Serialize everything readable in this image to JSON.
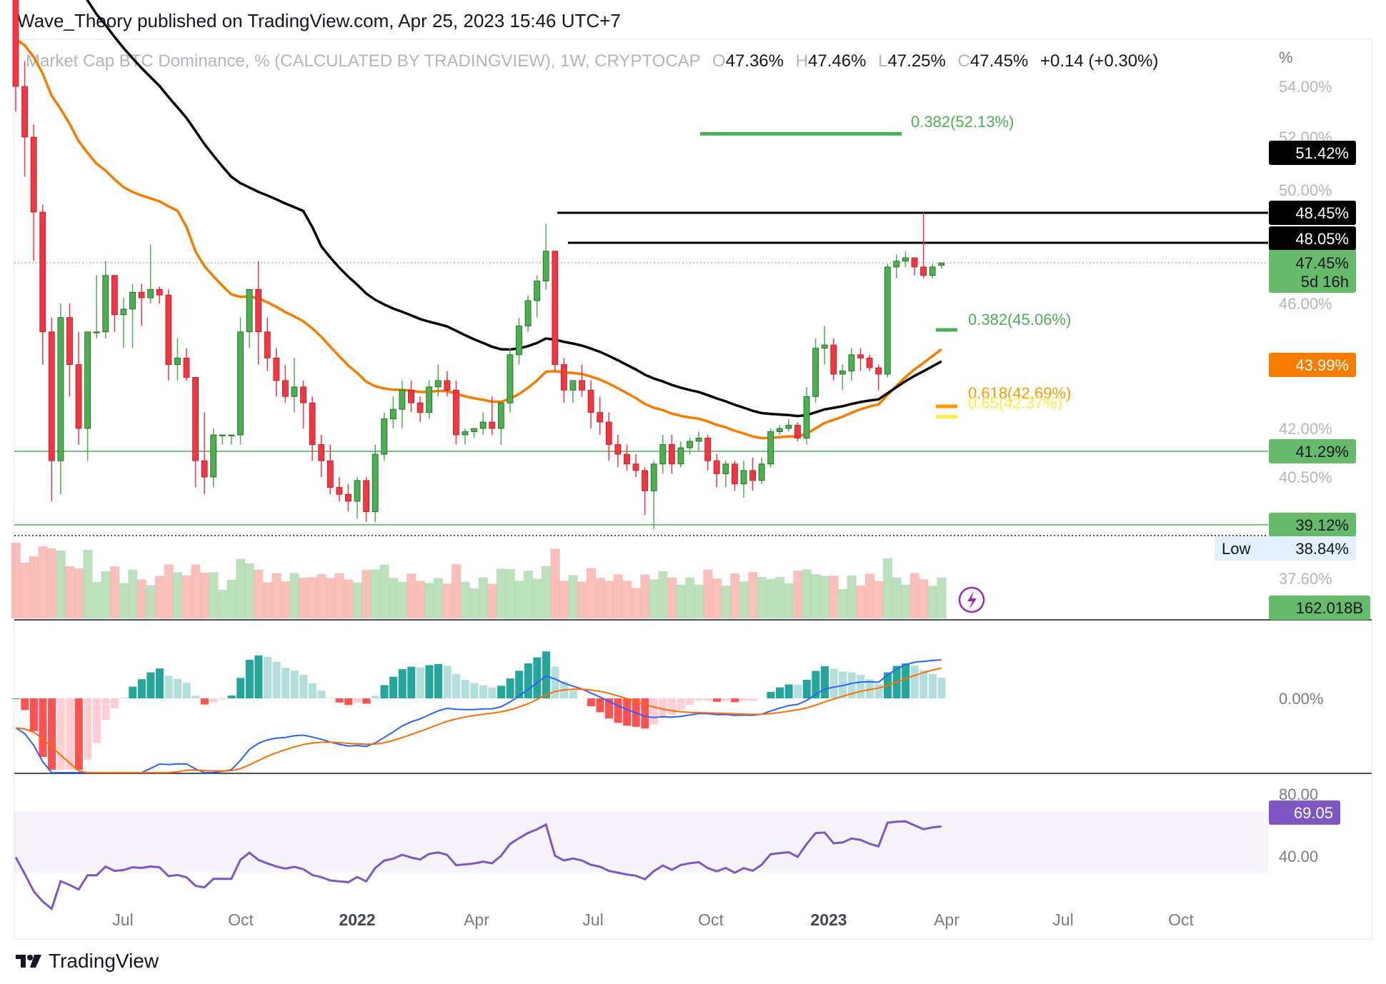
{
  "header": {
    "text": "Wave_Theory published on TradingView.com, Apr 25, 2023 15:46 UTC+7"
  },
  "legend": {
    "symbol": "Market Cap BTC Dominance, % (CALCULATED BY TRADINGVIEW), 1W, CRYPTOCAP",
    "o_key": "O",
    "o_val": "47.36%",
    "h_key": "H",
    "h_val": "47.46%",
    "l_key": "L",
    "l_val": "47.25%",
    "c_key": "C",
    "c_val": "47.45%",
    "change": "+0.14 (+0.30%)"
  },
  "footer": {
    "brand": "TradingView"
  },
  "colors": {
    "up": "#4caf50",
    "down": "#f23645",
    "ema_fast": "#f57c00",
    "ema_slow": "#000000",
    "macd": "#2962ff",
    "signal": "#ff6d00",
    "rsi": "#7e57c2",
    "fib": "#4caf50",
    "fib618": "#ff9800",
    "fib65": "#ffeb3b"
  },
  "chart_data": {
    "type": "candlestick",
    "timeframe": "1W",
    "y_unit": "%",
    "y_ticks": [
      "54.00%",
      "52.00%",
      "50.00%",
      "46.00%",
      "42.00%",
      "40.50%",
      "37.60%"
    ],
    "y_axis_unit_label": "%",
    "x_ticks": [
      "Jul",
      "Oct",
      "2022",
      "Apr",
      "Jul",
      "Oct",
      "2023",
      "Apr",
      "Jul",
      "Oct"
    ],
    "candles": [
      [
        59.5,
        61.0,
        53.0,
        54.0
      ],
      [
        54.0,
        55.0,
        50.5,
        52.0
      ],
      [
        52.0,
        52.5,
        47.5,
        48.5
      ],
      [
        48.5,
        49.0,
        44.0,
        45.0
      ],
      [
        45.0,
        45.5,
        39.8,
        41.0
      ],
      [
        41.0,
        46.0,
        40.0,
        45.5
      ],
      [
        45.5,
        46.0,
        43.0,
        44.0
      ],
      [
        44.0,
        45.0,
        41.5,
        42.0
      ],
      [
        42.0,
        45.0,
        41.0,
        45.0
      ],
      [
        45.0,
        47.0,
        44.8,
        45.0
      ],
      [
        45.0,
        47.5,
        44.8,
        47.0
      ],
      [
        47.0,
        47.0,
        45.0,
        45.6
      ],
      [
        45.6,
        46.2,
        44.5,
        45.8
      ],
      [
        45.8,
        46.7,
        44.5,
        46.4
      ],
      [
        46.4,
        46.7,
        45.2,
        46.2
      ],
      [
        46.2,
        48.0,
        46.0,
        46.5
      ],
      [
        46.5,
        46.6,
        46.0,
        46.3
      ],
      [
        46.3,
        46.5,
        43.5,
        44.0
      ],
      [
        44.0,
        44.8,
        43.5,
        44.2
      ],
      [
        44.2,
        44.5,
        43.5,
        43.6
      ],
      [
        43.6,
        43.6,
        40.2,
        41.0
      ],
      [
        41.0,
        42.5,
        40.0,
        40.5
      ],
      [
        40.5,
        42.0,
        40.2,
        41.8
      ],
      [
        41.8,
        41.8,
        41.5,
        41.8
      ],
      [
        41.8,
        41.8,
        41.5,
        41.8
      ],
      [
        41.8,
        45.5,
        41.5,
        45.0
      ],
      [
        45.0,
        46.5,
        44.5,
        46.5
      ],
      [
        46.5,
        47.5,
        44.0,
        45.0
      ],
      [
        45.0,
        45.5,
        43.8,
        44.2
      ],
      [
        44.2,
        44.5,
        43.0,
        43.5
      ],
      [
        43.5,
        44.0,
        42.8,
        43.0
      ],
      [
        43.0,
        44.2,
        42.5,
        43.3
      ],
      [
        43.3,
        43.5,
        42.0,
        42.8
      ],
      [
        42.8,
        43.0,
        41.0,
        41.5
      ],
      [
        41.5,
        41.8,
        40.5,
        41.0
      ],
      [
        41.0,
        41.5,
        40.0,
        40.2
      ],
      [
        40.2,
        40.5,
        39.8,
        40.0
      ],
      [
        40.0,
        40.3,
        39.5,
        39.8
      ],
      [
        39.8,
        40.5,
        39.3,
        40.4
      ],
      [
        40.4,
        40.5,
        39.2,
        39.5
      ],
      [
        39.5,
        41.5,
        39.2,
        41.2
      ],
      [
        41.2,
        42.5,
        41.0,
        42.3
      ],
      [
        42.3,
        43.0,
        42.0,
        42.6
      ],
      [
        42.6,
        43.5,
        42.0,
        43.2
      ],
      [
        43.2,
        43.5,
        42.5,
        42.8
      ],
      [
        42.8,
        43.0,
        42.2,
        42.5
      ],
      [
        42.5,
        43.5,
        42.3,
        43.3
      ],
      [
        43.3,
        44.0,
        43.0,
        43.5
      ],
      [
        43.5,
        43.8,
        43.0,
        43.2
      ],
      [
        43.2,
        43.5,
        41.5,
        41.8
      ],
      [
        41.8,
        42.0,
        41.5,
        41.9
      ],
      [
        41.9,
        42.0,
        41.7,
        42.0
      ],
      [
        42.0,
        42.5,
        41.8,
        42.2
      ],
      [
        42.2,
        43.0,
        41.8,
        42.0
      ],
      [
        42.0,
        42.8,
        41.5,
        42.8
      ],
      [
        42.8,
        44.5,
        42.5,
        44.3
      ],
      [
        44.3,
        45.5,
        44.0,
        45.2
      ],
      [
        45.2,
        46.3,
        45.0,
        46.1
      ],
      [
        46.1,
        47.0,
        45.5,
        46.8
      ],
      [
        46.8,
        48.3,
        46.5,
        47.8
      ],
      [
        47.8,
        47.8,
        43.8,
        44.0
      ],
      [
        44.0,
        44.2,
        42.8,
        43.2
      ],
      [
        43.2,
        43.5,
        42.8,
        43.5
      ],
      [
        43.5,
        44.0,
        43.0,
        43.2
      ],
      [
        43.2,
        43.5,
        42.0,
        42.5
      ],
      [
        42.5,
        43.0,
        41.8,
        42.2
      ],
      [
        42.2,
        42.5,
        41.0,
        41.5
      ],
      [
        41.5,
        41.8,
        40.8,
        41.2
      ],
      [
        41.2,
        41.5,
        40.7,
        40.9
      ],
      [
        40.9,
        41.2,
        40.5,
        40.7
      ],
      [
        40.7,
        40.8,
        39.4,
        40.1
      ],
      [
        40.1,
        41.0,
        39.0,
        40.9
      ],
      [
        40.9,
        41.8,
        40.6,
        41.5
      ],
      [
        41.5,
        41.8,
        40.6,
        40.9
      ],
      [
        40.9,
        41.6,
        40.8,
        41.4
      ],
      [
        41.4,
        41.7,
        41.2,
        41.6
      ],
      [
        41.6,
        41.9,
        41.3,
        41.7
      ],
      [
        41.7,
        41.8,
        40.7,
        41.0
      ],
      [
        41.0,
        41.2,
        40.2,
        40.6
      ],
      [
        40.6,
        41.0,
        40.2,
        40.9
      ],
      [
        40.9,
        41.0,
        40.1,
        40.3
      ],
      [
        40.3,
        41.0,
        39.9,
        40.7
      ],
      [
        40.7,
        41.1,
        40.1,
        40.4
      ],
      [
        40.4,
        41.1,
        40.3,
        40.9
      ],
      [
        40.9,
        42.0,
        40.8,
        41.9
      ],
      [
        41.9,
        42.1,
        41.8,
        42.0
      ],
      [
        42.0,
        42.3,
        41.9,
        42.1
      ],
      [
        42.1,
        42.2,
        41.6,
        41.7
      ],
      [
        41.7,
        43.3,
        41.5,
        43.0
      ],
      [
        43.0,
        44.8,
        42.8,
        44.5
      ],
      [
        44.5,
        45.2,
        44.0,
        44.6
      ],
      [
        44.6,
        44.8,
        43.5,
        43.7
      ],
      [
        43.7,
        44.0,
        43.2,
        43.8
      ],
      [
        43.8,
        44.5,
        43.5,
        44.3
      ],
      [
        44.3,
        44.5,
        43.8,
        44.2
      ],
      [
        44.2,
        44.3,
        43.8,
        43.9
      ],
      [
        43.9,
        44.0,
        43.2,
        43.7
      ],
      [
        43.7,
        47.4,
        43.6,
        47.3
      ],
      [
        47.3,
        47.7,
        46.9,
        47.5
      ],
      [
        47.5,
        47.8,
        47.3,
        47.6
      ],
      [
        47.6,
        47.6,
        47.0,
        47.3
      ],
      [
        47.3,
        48.45,
        46.9,
        47.0
      ],
      [
        47.0,
        47.4,
        46.9,
        47.3
      ],
      [
        47.36,
        47.46,
        47.25,
        47.45
      ]
    ],
    "ema_fast_label": "43.99%",
    "ema_slow_label": "51.42%",
    "levels": [
      {
        "label": "48.45%",
        "value": 48.45,
        "color": "#000000"
      },
      {
        "label": "48.05%",
        "value": 48.05,
        "color": "#000000"
      },
      {
        "label": "41.29%",
        "value": 41.29,
        "color": "#4caf50"
      },
      {
        "label": "39.12%",
        "value": 39.12,
        "color": "#4caf50"
      }
    ],
    "fibs": [
      {
        "label": "0.382(52.13%)",
        "value": 52.13,
        "color": "#4caf50"
      },
      {
        "label": "0.382(45.06%)",
        "value": 45.06,
        "color": "#4caf50"
      },
      {
        "label": "0.618(42.69%)",
        "value": 42.69,
        "color": "#ff9800"
      },
      {
        "label": "0.65(42.37%)",
        "value": 42.37,
        "color": "#ffeb3b"
      }
    ],
    "price_label": "47.45%",
    "countdown_label": "5d 16h",
    "low_key": "Low",
    "low_value": "38.84%",
    "volume_label": "162.018B",
    "macd_tick": "0.00%",
    "rsi_ticks": [
      "80.00",
      "40.00"
    ],
    "rsi_label": "69.05"
  }
}
